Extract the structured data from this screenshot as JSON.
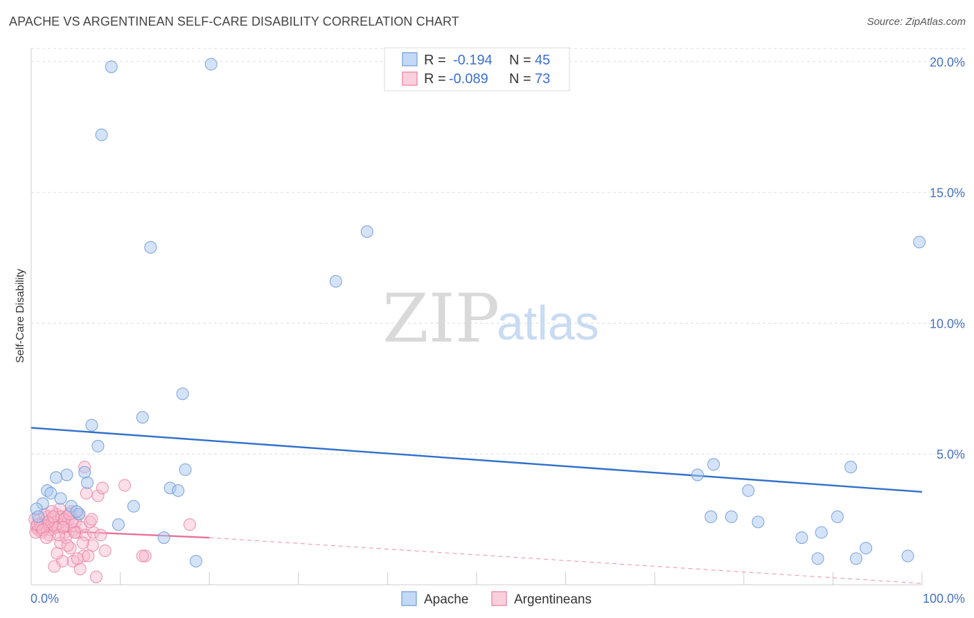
{
  "title": "APACHE VS ARGENTINEAN SELF-CARE DISABILITY CORRELATION CHART",
  "source": "Source: ZipAtlas.com",
  "watermark": {
    "part1": "ZIP",
    "part2": "atlas"
  },
  "colors": {
    "apache": "#a9c8f0",
    "apache_stroke": "#6f9bd6",
    "apache_line": "#2f6fcb",
    "argentineans": "#f8b9cc",
    "argentineans_stroke": "#e67fa2",
    "argentineans_line": "#e8709a",
    "axis_label": "#4472c4",
    "grid": "#dddddd"
  },
  "legend": {
    "rows": [
      {
        "r_label": "R =",
        "r_value": "-0.194",
        "n_label": "N =",
        "n_value": "45"
      },
      {
        "r_label": "R =",
        "r_value": "-0.089",
        "n_label": "N =",
        "n_value": "73"
      }
    ]
  },
  "bottom_legend": [
    "Apache",
    "Argentineans"
  ],
  "chart_data": {
    "type": "scatter",
    "title": "APACHE VS ARGENTINEAN SELF-CARE DISABILITY CORRELATION CHART",
    "xlabel": "",
    "ylabel": "Self-Care Disability",
    "xlim": [
      0,
      100
    ],
    "ylim": [
      0,
      20.5
    ],
    "y_ticks": [
      {
        "value": 5,
        "label": "5.0%"
      },
      {
        "value": 10,
        "label": "10.0%"
      },
      {
        "value": 15,
        "label": "15.0%"
      },
      {
        "value": 20,
        "label": "20.0%"
      }
    ],
    "x_tick_labels": [
      {
        "value": 0,
        "label": "0.0%"
      },
      {
        "value": 100,
        "label": "100.0%"
      }
    ],
    "x_minor_ticks": [
      10,
      20,
      30,
      40,
      50,
      60,
      70,
      80,
      90,
      100
    ],
    "grid": true,
    "legend_position": "top-center",
    "series": [
      {
        "name": "Apache",
        "trend": {
          "x0": 0,
          "y0": 6.0,
          "x1": 100,
          "y1": 3.55
        },
        "points": [
          [
            9.0,
            19.8
          ],
          [
            20.2,
            19.9
          ],
          [
            7.9,
            17.2
          ],
          [
            13.4,
            12.9
          ],
          [
            37.7,
            13.5
          ],
          [
            34.2,
            11.6
          ],
          [
            99.7,
            13.1
          ],
          [
            17.0,
            7.3
          ],
          [
            12.5,
            6.4
          ],
          [
            6.8,
            6.1
          ],
          [
            7.5,
            5.3
          ],
          [
            4.0,
            4.2
          ],
          [
            6.0,
            4.3
          ],
          [
            17.3,
            4.4
          ],
          [
            2.8,
            4.1
          ],
          [
            6.3,
            3.9
          ],
          [
            1.8,
            3.6
          ],
          [
            15.6,
            3.7
          ],
          [
            16.5,
            3.6
          ],
          [
            2.2,
            3.5
          ],
          [
            3.3,
            3.3
          ],
          [
            1.3,
            3.1
          ],
          [
            11.5,
            3.0
          ],
          [
            4.5,
            3.0
          ],
          [
            0.6,
            2.9
          ],
          [
            5.4,
            2.7
          ],
          [
            5.1,
            2.8
          ],
          [
            0.8,
            2.6
          ],
          [
            9.8,
            2.3
          ],
          [
            14.9,
            1.8
          ],
          [
            18.5,
            0.9
          ],
          [
            76.6,
            4.6
          ],
          [
            92.0,
            4.5
          ],
          [
            74.8,
            4.2
          ],
          [
            80.5,
            3.6
          ],
          [
            78.6,
            2.6
          ],
          [
            76.3,
            2.6
          ],
          [
            81.6,
            2.4
          ],
          [
            90.5,
            2.6
          ],
          [
            88.7,
            2.0
          ],
          [
            86.5,
            1.8
          ],
          [
            93.7,
            1.4
          ],
          [
            88.3,
            1.0
          ],
          [
            92.6,
            1.0
          ],
          [
            98.4,
            1.1
          ]
        ]
      },
      {
        "name": "Argentineans",
        "trend": {
          "x0": 0,
          "y0": 2.1,
          "x1": 20,
          "y1": 1.8,
          "x_dash_end": 100,
          "y_dash_end": 0.05
        },
        "points": [
          [
            0.4,
            2.5
          ],
          [
            0.6,
            2.2
          ],
          [
            0.8,
            2.1
          ],
          [
            1.0,
            2.3
          ],
          [
            1.2,
            2.0
          ],
          [
            1.4,
            2.4
          ],
          [
            1.6,
            2.2
          ],
          [
            1.8,
            2.6
          ],
          [
            2.0,
            2.3
          ],
          [
            2.2,
            2.1
          ],
          [
            2.4,
            2.5
          ],
          [
            2.6,
            2.4
          ],
          [
            2.8,
            2.7
          ],
          [
            3.0,
            2.2
          ],
          [
            3.2,
            2.9
          ],
          [
            3.4,
            2.6
          ],
          [
            3.6,
            2.3
          ],
          [
            3.8,
            2.0
          ],
          [
            4.0,
            2.6
          ],
          [
            4.2,
            2.5
          ],
          [
            4.5,
            2.8
          ],
          [
            4.8,
            2.1
          ],
          [
            5.0,
            2.4
          ],
          [
            5.3,
            2.7
          ],
          [
            0.5,
            2.0
          ],
          [
            0.9,
            2.5
          ],
          [
            1.5,
            2.7
          ],
          [
            2.1,
            1.9
          ],
          [
            2.7,
            2.2
          ],
          [
            3.3,
            1.6
          ],
          [
            3.9,
            1.8
          ],
          [
            4.4,
            1.4
          ],
          [
            5.1,
            2.0
          ],
          [
            5.6,
            2.2
          ],
          [
            6.1,
            1.9
          ],
          [
            6.6,
            2.4
          ],
          [
            7.0,
            2.0
          ],
          [
            7.5,
            3.4
          ],
          [
            8.0,
            3.7
          ],
          [
            6.0,
            4.5
          ],
          [
            6.2,
            3.5
          ],
          [
            7.8,
            1.9
          ],
          [
            8.3,
            1.3
          ],
          [
            6.9,
            1.5
          ],
          [
            5.9,
            1.1
          ],
          [
            4.7,
            0.9
          ],
          [
            3.5,
            0.9
          ],
          [
            2.6,
            0.7
          ],
          [
            5.5,
            0.6
          ],
          [
            7.3,
            0.3
          ],
          [
            2.9,
            1.2
          ],
          [
            4.1,
            1.5
          ],
          [
            3.7,
            2.5
          ],
          [
            4.9,
            2.0
          ],
          [
            10.5,
            3.8
          ],
          [
            12.8,
            1.1
          ],
          [
            12.5,
            1.1
          ],
          [
            17.8,
            2.3
          ],
          [
            6.4,
            1.1
          ],
          [
            3.1,
            1.9
          ],
          [
            1.1,
            2.2
          ],
          [
            1.9,
            2.4
          ],
          [
            2.3,
            2.8
          ],
          [
            4.6,
            2.4
          ],
          [
            5.8,
            1.6
          ],
          [
            6.8,
            2.5
          ],
          [
            0.7,
            2.3
          ],
          [
            1.3,
            2.1
          ],
          [
            1.7,
            1.8
          ],
          [
            2.5,
            2.6
          ],
          [
            3.6,
            2.2
          ],
          [
            4.3,
            2.7
          ],
          [
            5.2,
            1.0
          ]
        ]
      }
    ]
  }
}
